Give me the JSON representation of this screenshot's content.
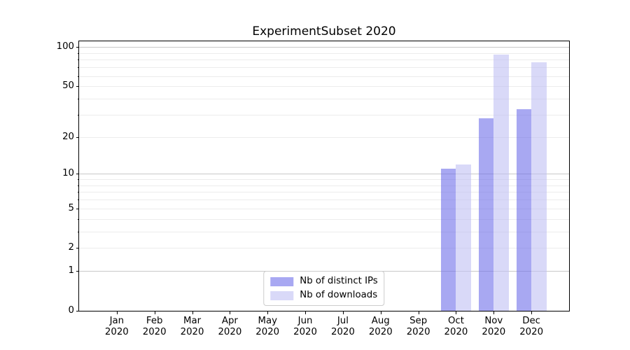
{
  "chart_data": {
    "type": "bar",
    "title": "ExperimentSubset 2020",
    "categories": [
      "Jan 2020",
      "Feb 2020",
      "Mar 2020",
      "Apr 2020",
      "May 2020",
      "Jun 2020",
      "Jul 2020",
      "Aug 2020",
      "Sep 2020",
      "Oct 2020",
      "Nov 2020",
      "Dec 2020"
    ],
    "x_tick_months": [
      "Jan",
      "Feb",
      "Mar",
      "Apr",
      "May",
      "Jun",
      "Jul",
      "Aug",
      "Sep",
      "Oct",
      "Nov",
      "Dec"
    ],
    "x_tick_year": "2020",
    "series": [
      {
        "name": "Nb of distinct IPs",
        "base_color": "#6e6ee9",
        "alpha": 0.6,
        "rendered_color": "#a8a8f2",
        "values": [
          0,
          0,
          0,
          0,
          0,
          0,
          0,
          0,
          0,
          11,
          28,
          33
        ]
      },
      {
        "name": "Nb of downloads",
        "base_color": "#c0c0f3",
        "alpha": 0.6,
        "rendered_color": "#d9d9f8",
        "values": [
          0,
          0,
          0,
          0,
          0,
          0,
          0,
          0,
          0,
          12,
          88,
          77
        ]
      }
    ],
    "yscale": "log1p",
    "ylim": [
      0,
      111
    ],
    "ytick_values": [
      0,
      1,
      2,
      5,
      10,
      20,
      50,
      100
    ],
    "ytick_labels": [
      "0",
      "1",
      "2",
      "5",
      "10",
      "20",
      "50",
      "100"
    ],
    "major_grid_values": [
      1,
      10,
      100
    ],
    "minor_grid_values": [
      2,
      3,
      4,
      5,
      6,
      7,
      8,
      9,
      20,
      30,
      40,
      50,
      60,
      70,
      80,
      90
    ],
    "grid": true,
    "grid_colors": {
      "major": "#c9c9c9",
      "minor": "#ececec"
    },
    "spine_color": "#000000",
    "legend": {
      "location": "lower center",
      "labels": [
        "Nb of distinct IPs",
        "Nb of downloads"
      ]
    }
  }
}
